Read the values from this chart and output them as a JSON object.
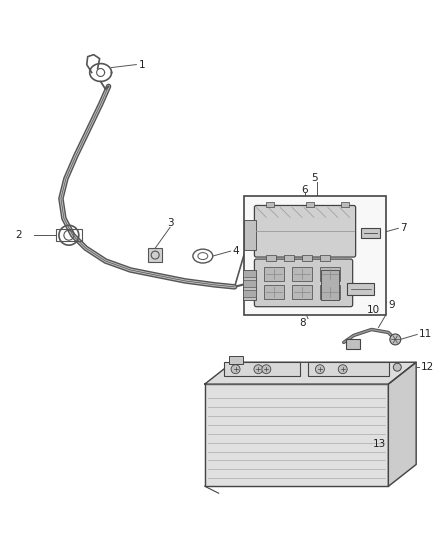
{
  "background_color": "#ffffff",
  "line_color": "#444444",
  "label_color": "#222222",
  "label_fontsize": 7.5,
  "cable_color": "#555555",
  "part_color": "#888888",
  "box_fill": "#f8f8f8",
  "bat_fill": "#e8e8e8",
  "bat_top_fill": "#dddddd",
  "bat_side_fill": "#cccccc",
  "bat_front_fill": "#e0e0e0"
}
